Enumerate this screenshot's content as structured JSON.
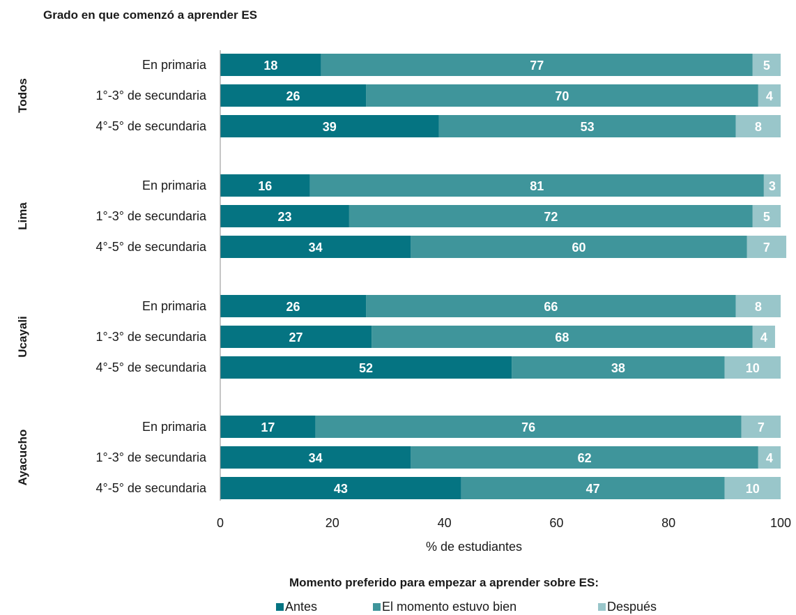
{
  "chart_data": {
    "type": "bar",
    "orientation": "horizontal-stacked",
    "title": "Grado en que comenzó a aprender ES",
    "xlabel": "% de estudiantes",
    "xlim": [
      0,
      100
    ],
    "xticks": [
      0,
      20,
      40,
      60,
      80,
      100
    ],
    "groups": [
      {
        "name": "Todos",
        "rows": [
          {
            "category": "En primaria",
            "values": [
              18,
              77,
              5
            ]
          },
          {
            "category": "1°-3° de secundaria",
            "values": [
              26,
              70,
              4
            ]
          },
          {
            "category": "4°-5° de secundaria",
            "values": [
              39,
              53,
              8
            ]
          }
        ]
      },
      {
        "name": "Lima",
        "rows": [
          {
            "category": "En primaria",
            "values": [
              16,
              81,
              3
            ]
          },
          {
            "category": "1°-3° de secundaria",
            "values": [
              23,
              72,
              5
            ]
          },
          {
            "category": "4°-5° de secundaria",
            "values": [
              34,
              60,
              7
            ]
          }
        ]
      },
      {
        "name": "Ucayali",
        "rows": [
          {
            "category": "En primaria",
            "values": [
              26,
              66,
              8
            ]
          },
          {
            "category": "1°-3° de secundaria",
            "values": [
              27,
              68,
              4
            ]
          },
          {
            "category": "4°-5° de secundaria",
            "values": [
              52,
              38,
              10
            ]
          }
        ]
      },
      {
        "name": "Ayacucho",
        "rows": [
          {
            "category": "En primaria",
            "values": [
              17,
              76,
              7
            ]
          },
          {
            "category": "1°-3° de secundaria",
            "values": [
              34,
              62,
              4
            ]
          },
          {
            "category": "4°-5° de secundaria",
            "values": [
              43,
              47,
              10
            ]
          }
        ]
      }
    ],
    "series": [
      {
        "name": "Antes",
        "color": "#057482"
      },
      {
        "name": "El momento estuvo bien",
        "color": "#3f959b"
      },
      {
        "name": "Después",
        "color": "#99c6ca"
      }
    ],
    "legend": {
      "title": "Momento preferido para empezar a aprender sobre ES:",
      "placement": "bottom"
    },
    "grid": false
  }
}
